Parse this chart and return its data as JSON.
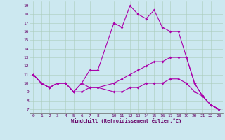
{
  "background_color": "#cce8f0",
  "line_color": "#aa00aa",
  "xlim": [
    -0.5,
    23.5
  ],
  "ylim": [
    6.5,
    19.5
  ],
  "xticks": [
    0,
    1,
    2,
    3,
    4,
    5,
    6,
    7,
    8,
    10,
    11,
    12,
    13,
    14,
    15,
    16,
    17,
    18,
    19,
    20,
    21,
    22,
    23
  ],
  "yticks": [
    7,
    8,
    9,
    10,
    11,
    12,
    13,
    14,
    15,
    16,
    17,
    18,
    19
  ],
  "xlabel": "Windchill (Refroidissement éolien,°C)",
  "line1_x": [
    0,
    1,
    2,
    3,
    4,
    5,
    6,
    7,
    8,
    10,
    11,
    12,
    13,
    14,
    15,
    16,
    17,
    18,
    19,
    20,
    21,
    22,
    23
  ],
  "line1_y": [
    11,
    10,
    9.5,
    10,
    10,
    9,
    10,
    11.5,
    11.5,
    17,
    16.5,
    19,
    18,
    17.5,
    18.5,
    16.5,
    16,
    16,
    13,
    10,
    8.5,
    7.5,
    7
  ],
  "line2_x": [
    0,
    1,
    2,
    3,
    4,
    5,
    6,
    7,
    8,
    10,
    11,
    12,
    13,
    14,
    15,
    16,
    17,
    18,
    19,
    20,
    21,
    22,
    23
  ],
  "line2_y": [
    11,
    10,
    9.5,
    10,
    10,
    9,
    10,
    9.5,
    9.5,
    10,
    10.5,
    11,
    11.5,
    12,
    12.5,
    12.5,
    13,
    13,
    13,
    10,
    8.5,
    7.5,
    7
  ],
  "line3_x": [
    0,
    1,
    2,
    3,
    4,
    5,
    6,
    7,
    8,
    10,
    11,
    12,
    13,
    14,
    15,
    16,
    17,
    18,
    19,
    20,
    21,
    22,
    23
  ],
  "line3_y": [
    11,
    10,
    9.5,
    10,
    10,
    9,
    9,
    9.5,
    9.5,
    9,
    9,
    9.5,
    9.5,
    10,
    10,
    10,
    10.5,
    10.5,
    10,
    9,
    8.5,
    7.5,
    7
  ],
  "grid_color": "#aaccbb",
  "spine_color": "#666666",
  "tick_label_color": "#660066",
  "xlabel_color": "#660066",
  "marker": "D",
  "markersize": 2.0,
  "linewidth": 0.8
}
